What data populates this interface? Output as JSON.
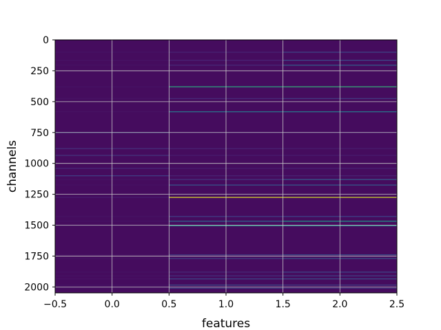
{
  "chart_data": {
    "type": "heatmap",
    "title": "",
    "xlabel": "features",
    "ylabel": "channels",
    "xlim": [
      -0.5,
      2.5
    ],
    "ylim": [
      2048,
      0
    ],
    "y_inverted": true,
    "grid": true,
    "colormap": "viridis",
    "x_ticks": [
      -0.5,
      0.0,
      0.5,
      1.0,
      1.5,
      2.0,
      2.5
    ],
    "x_tick_labels": [
      "−0.5",
      "0.0",
      "0.5",
      "1.0",
      "1.5",
      "2.0",
      "2.5"
    ],
    "y_ticks": [
      0,
      250,
      500,
      750,
      1000,
      1250,
      1500,
      1750,
      2000
    ],
    "y_tick_labels": [
      "0",
      "250",
      "500",
      "750",
      "1000",
      "1250",
      "1500",
      "1750",
      "2000"
    ],
    "n_rows": 2048,
    "n_cols": 3,
    "background_value": 0.03,
    "highlight_rows": [
      {
        "row": 380,
        "values": [
          0.05,
          0.62,
          0.66
        ]
      },
      {
        "row": 582,
        "values": [
          0.05,
          0.4,
          0.42
        ]
      },
      {
        "row": 1275,
        "values": [
          0.08,
          0.96,
          0.94
        ]
      },
      {
        "row": 1468,
        "values": [
          0.05,
          0.35,
          0.55
        ]
      },
      {
        "row": 1505,
        "values": [
          0.05,
          0.52,
          0.5
        ]
      },
      {
        "row": 1175,
        "values": [
          0.05,
          0.28,
          0.3
        ]
      },
      {
        "row": 1985,
        "values": [
          0.05,
          0.25,
          0.2
        ]
      },
      {
        "row": 1935,
        "values": [
          0.05,
          0.22,
          0.24
        ]
      },
      {
        "row": 1770,
        "values": [
          0.05,
          0.2,
          0.26
        ]
      },
      {
        "row": 1740,
        "values": [
          0.05,
          0.18,
          0.25
        ]
      },
      {
        "row": 1130,
        "values": [
          0.05,
          0.15,
          0.3
        ]
      },
      {
        "row": 1100,
        "values": [
          0.2,
          0.1,
          0.1
        ]
      },
      {
        "row": 750,
        "values": [
          0.22,
          0.1,
          0.1
        ]
      },
      {
        "row": 205,
        "values": [
          0.05,
          0.12,
          0.32
        ]
      },
      {
        "row": 100,
        "values": [
          0.05,
          0.1,
          0.22
        ]
      },
      {
        "row": 165,
        "values": [
          0.05,
          0.1,
          0.24
        ]
      },
      {
        "row": 1430,
        "values": [
          0.05,
          0.2,
          0.22
        ]
      },
      {
        "row": 1880,
        "values": [
          0.05,
          0.12,
          0.22
        ]
      },
      {
        "row": 1910,
        "values": [
          0.05,
          0.14,
          0.2
        ]
      },
      {
        "row": 2010,
        "values": [
          0.05,
          0.22,
          0.18
        ]
      },
      {
        "row": 475,
        "values": [
          0.05,
          0.12,
          0.18
        ]
      },
      {
        "row": 880,
        "values": [
          0.14,
          0.1,
          0.08
        ]
      },
      {
        "row": 935,
        "values": [
          0.16,
          0.08,
          0.08
        ]
      },
      {
        "row": 1040,
        "values": [
          0.12,
          0.08,
          0.1
        ]
      }
    ]
  }
}
